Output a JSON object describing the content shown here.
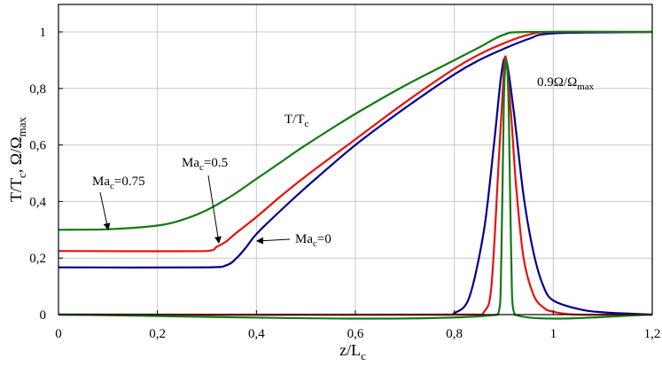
{
  "chart_data": {
    "type": "line",
    "title": "",
    "xlabel": "z/L",
    "xlabel_sub": "c",
    "ylabel_parts": {
      "t1": "T/T",
      "s1": "c",
      "t2": ", Ω/Ω",
      "s2": "max"
    },
    "xlim": [
      0,
      1.2
    ],
    "ylim": [
      0,
      1.05
    ],
    "grid": true,
    "x_ticks": [
      0,
      0.2,
      0.4,
      0.6,
      0.8,
      1,
      1.2
    ],
    "x_tick_labels": [
      "0",
      "0,2",
      "0,4",
      "0,6",
      "0,8",
      "1",
      "1,2"
    ],
    "y_ticks": [
      0,
      0.2,
      0.4,
      0.6,
      0.8,
      1
    ],
    "y_tick_labels": [
      "0",
      "0,2",
      "0,4",
      "0,6",
      "0,8",
      "1"
    ],
    "series": [
      {
        "name": "T/Tc, Ma_c=0",
        "color": "#00008b",
        "x": [
          0,
          0.3,
          0.34,
          0.36,
          0.38,
          0.4,
          0.45,
          0.5,
          0.6,
          0.7,
          0.8,
          0.85,
          0.9,
          0.95,
          1.0,
          1.2
        ],
        "y": [
          0.167,
          0.167,
          0.175,
          0.2,
          0.24,
          0.285,
          0.37,
          0.45,
          0.6,
          0.73,
          0.85,
          0.9,
          0.94,
          0.975,
          0.995,
          1.0
        ]
      },
      {
        "name": "T/Tc, Ma_c=0.5",
        "color": "#e81010",
        "x": [
          0,
          0.3,
          0.32,
          0.34,
          0.36,
          0.4,
          0.45,
          0.5,
          0.6,
          0.7,
          0.8,
          0.85,
          0.9,
          0.95,
          1.0,
          1.2
        ],
        "y": [
          0.225,
          0.225,
          0.24,
          0.26,
          0.29,
          0.345,
          0.42,
          0.49,
          0.62,
          0.75,
          0.87,
          0.92,
          0.96,
          0.99,
          1.0,
          1.0
        ]
      },
      {
        "name": "T/Tc, Ma_c=0.75",
        "color": "#137a13",
        "x": [
          0,
          0.1,
          0.2,
          0.25,
          0.3,
          0.35,
          0.4,
          0.45,
          0.5,
          0.6,
          0.7,
          0.8,
          0.85,
          0.9,
          0.95,
          1.2
        ],
        "y": [
          0.3,
          0.302,
          0.315,
          0.335,
          0.37,
          0.42,
          0.48,
          0.54,
          0.6,
          0.71,
          0.81,
          0.9,
          0.945,
          0.99,
          1.0,
          1.0
        ]
      },
      {
        "name": "0.9Ω/Ωmax, Ma_c=0",
        "color": "#00008b",
        "x": [
          0,
          0.78,
          0.8,
          0.83,
          0.86,
          0.88,
          0.895,
          0.905,
          0.92,
          0.94,
          0.96,
          0.98,
          1.0,
          1.05,
          1.1,
          1.2
        ],
        "y": [
          0,
          0,
          0.005,
          0.06,
          0.3,
          0.6,
          0.85,
          0.9,
          0.72,
          0.42,
          0.22,
          0.1,
          0.05,
          0.02,
          0.008,
          0.0
        ]
      },
      {
        "name": "0.9Ω/Ωmax, Ma_c=0.5",
        "color": "#e81010",
        "x": [
          0,
          0.84,
          0.86,
          0.875,
          0.89,
          0.9,
          0.905,
          0.915,
          0.925,
          0.94,
          0.96,
          0.98,
          1.0,
          1.05,
          1.2
        ],
        "y": [
          0,
          0,
          0.01,
          0.1,
          0.55,
          0.86,
          0.9,
          0.7,
          0.45,
          0.2,
          0.07,
          0.025,
          0.01,
          0.0,
          0.0
        ]
      },
      {
        "name": "0.9Ω/Ωmax, Ma_c=0.75",
        "color": "#137a13",
        "x": [
          0,
          0.888,
          0.895,
          0.9,
          0.905,
          0.91,
          0.915,
          0.922,
          1.2
        ],
        "y": [
          0,
          0,
          0.2,
          0.75,
          0.9,
          0.72,
          0.2,
          0,
          0
        ]
      }
    ],
    "annotations": [
      {
        "id": "ma075",
        "text": "Ma",
        "sub": "c",
        "tail": "=0.75"
      },
      {
        "id": "ma05",
        "text": "Ma",
        "sub": "c",
        "tail": "=0.5"
      },
      {
        "id": "ma0",
        "text": "Ma",
        "sub": "c",
        "tail": "=0"
      },
      {
        "id": "ttc",
        "text": "T/T",
        "sub": "c",
        "tail": ""
      },
      {
        "id": "omega",
        "text": "0.9Ω/Ω",
        "sub": "max",
        "tail": ""
      }
    ]
  }
}
